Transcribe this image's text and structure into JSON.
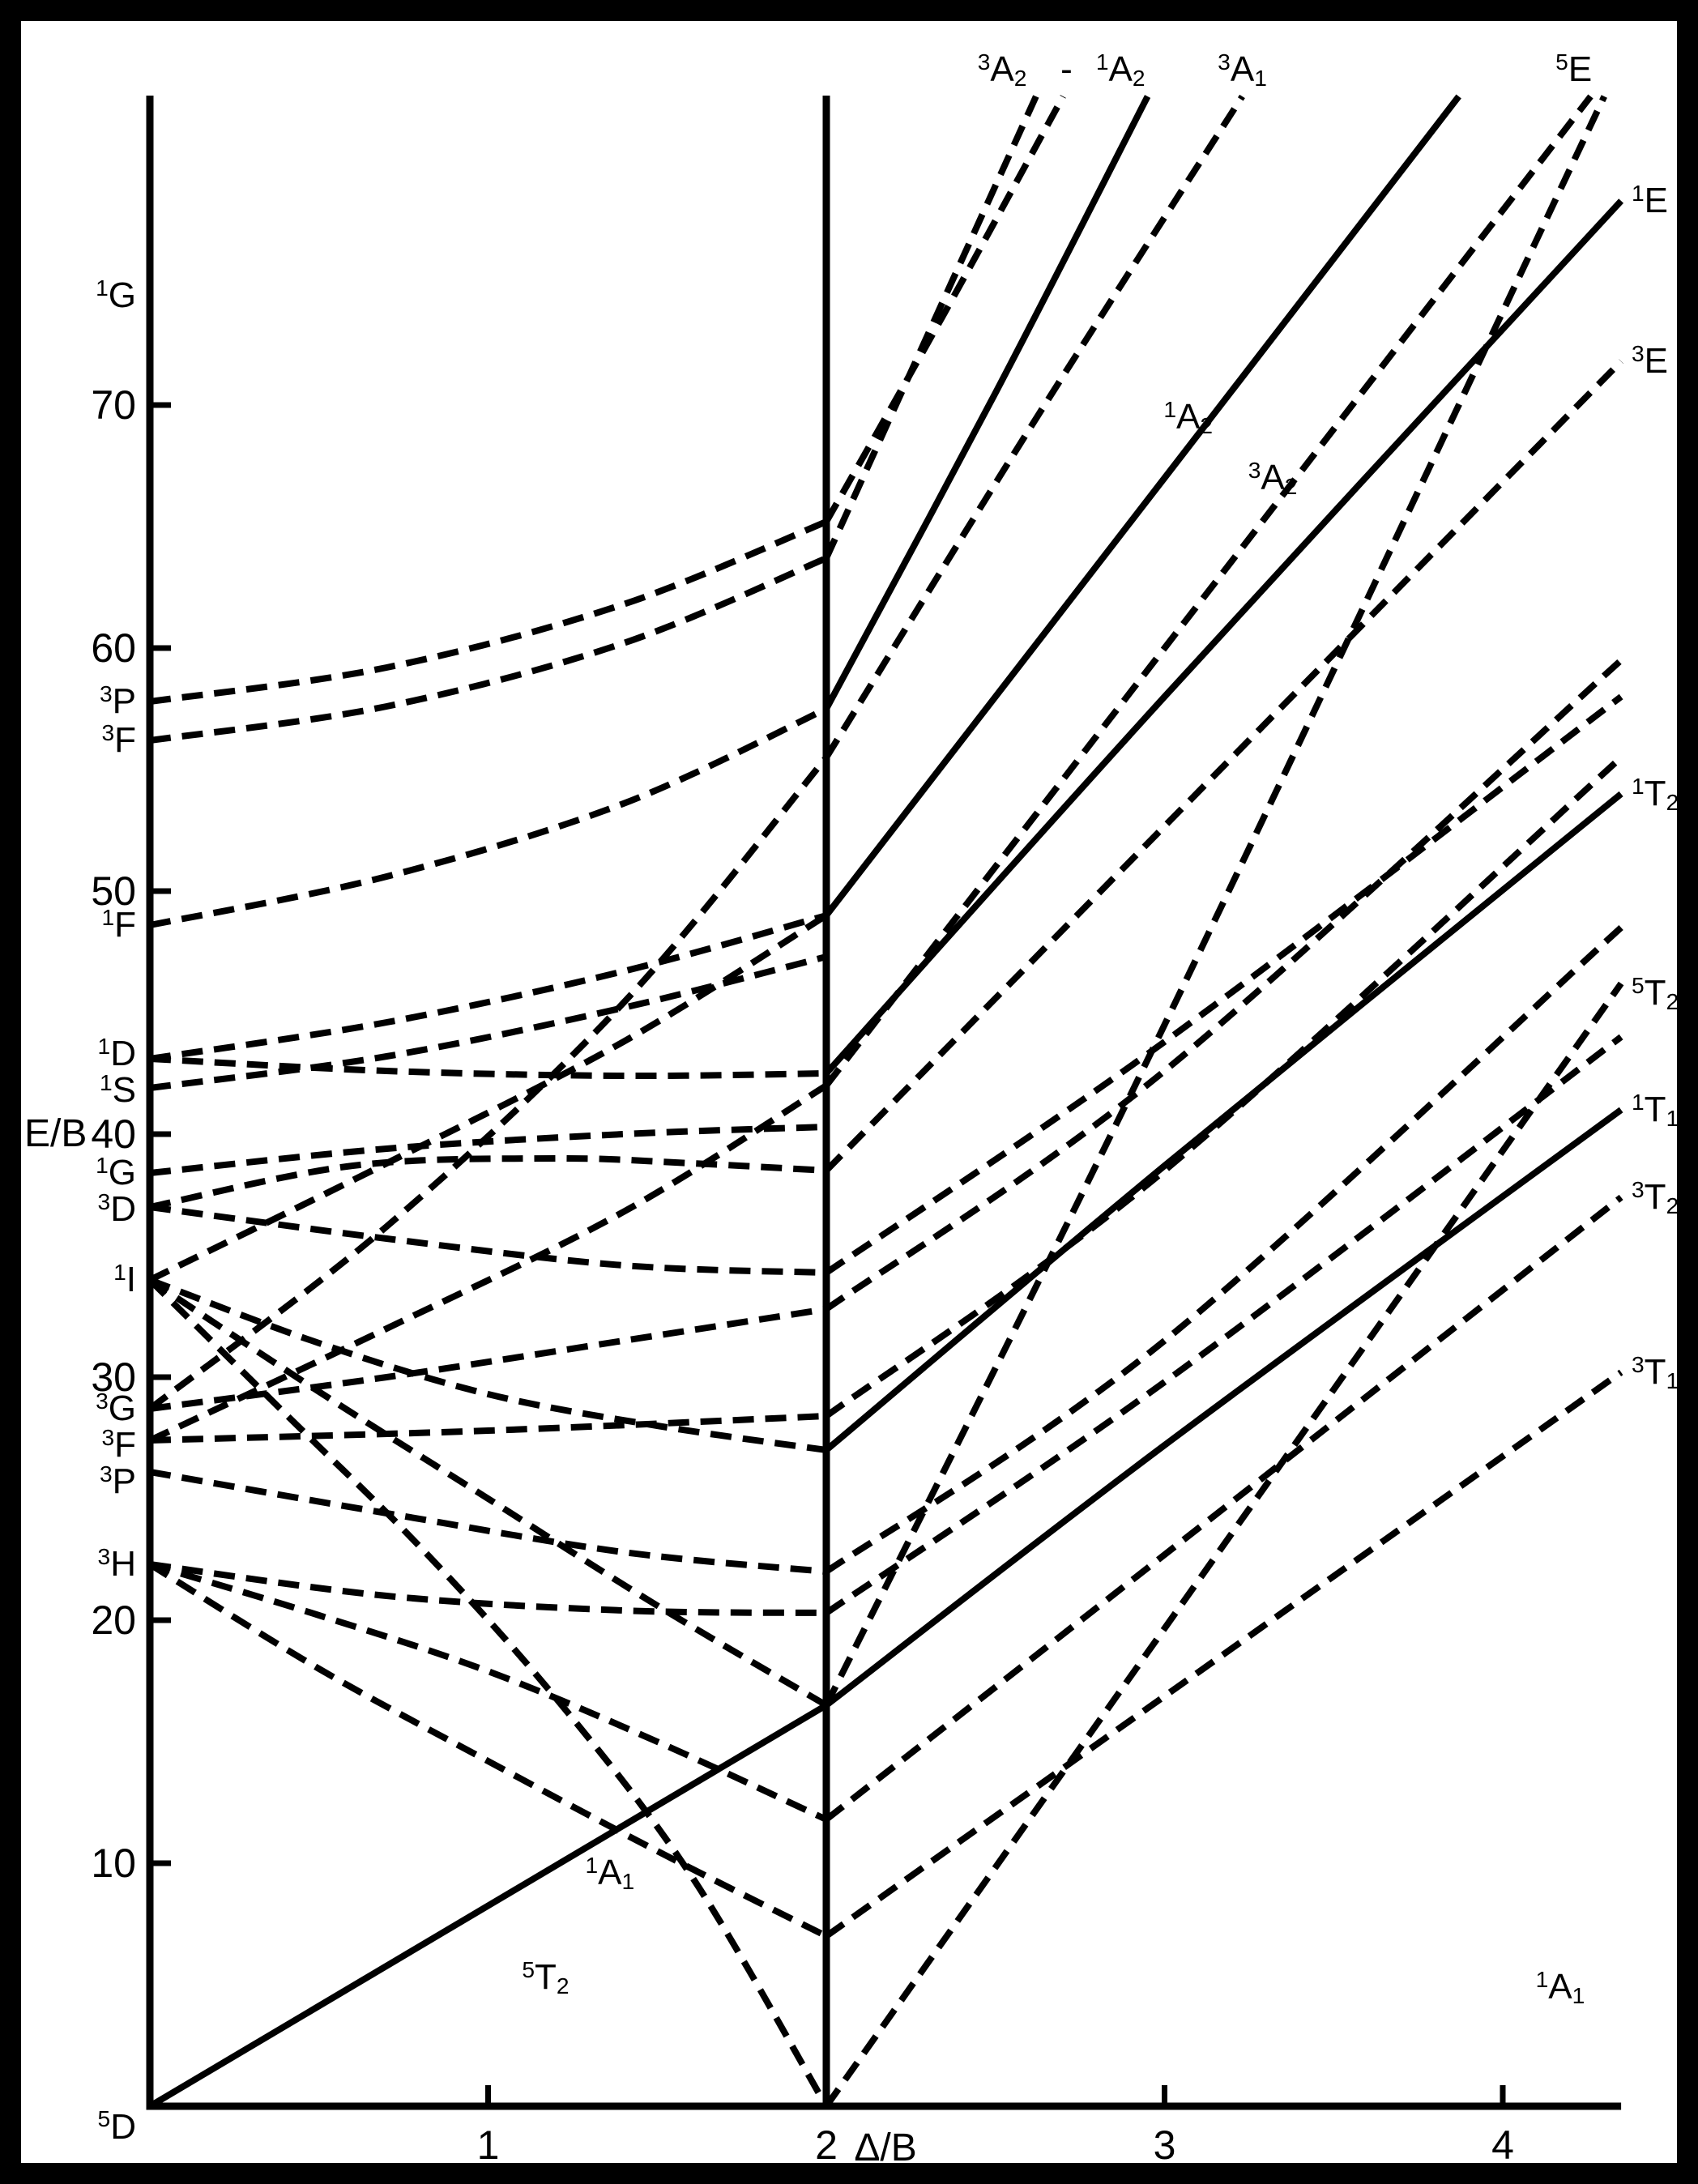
{
  "figure": {
    "background": "#ffffff",
    "frame_color": "#000000"
  },
  "chart_data": {
    "type": "line",
    "description": "Tanabe-Sugano style energy level diagram, E/B versus Delta/B, with spin-crossover vertical line at Delta/B = 2. Solid curves are spin-allowed states, dashed curves are spin-forbidden states.",
    "xlabel": "Δ/B",
    "ylabel": "E/B",
    "xlim": [
      0,
      4.35
    ],
    "ylim": [
      0,
      82.7
    ],
    "x_ticks": [
      1,
      2,
      3,
      4
    ],
    "y_ticks": [
      10,
      20,
      30,
      40,
      50,
      60,
      70
    ],
    "grid": false,
    "legend": "none",
    "crossover_line_x": 2,
    "line_color": "#000000",
    "background": "#ffffff",
    "series": [
      {
        "name": "5E-left",
        "style": "solid",
        "points": [
          [
            0,
            0
          ],
          [
            2,
            16.5
          ]
        ]
      },
      {
        "name": "1T1-right",
        "style": "solid",
        "points": [
          [
            2,
            16.5
          ],
          [
            3,
            27.2
          ],
          [
            4.35,
            41
          ]
        ]
      },
      {
        "name": "1T2-right",
        "style": "solid",
        "points": [
          [
            2,
            27
          ],
          [
            3,
            38.7
          ],
          [
            4.35,
            54
          ]
        ]
      },
      {
        "name": "1E-right",
        "style": "solid",
        "points": [
          [
            2,
            42.5
          ],
          [
            3,
            58
          ],
          [
            4.35,
            78.4
          ]
        ]
      },
      {
        "name": "1A2a-right",
        "style": "solid",
        "points": [
          [
            2,
            57.5
          ],
          [
            2.5,
            70.5
          ],
          [
            2.95,
            82.7
          ]
        ]
      },
      {
        "name": "1A2b-right",
        "style": "solid",
        "points": [
          [
            2,
            49
          ],
          [
            3,
            67
          ],
          [
            3.87,
            82.7
          ]
        ]
      },
      {
        "name": "5T2-right",
        "style": "dashed",
        "points": [
          [
            2,
            0
          ],
          [
            4.35,
            46.2
          ]
        ]
      },
      {
        "name": "5E-right",
        "style": "dashed",
        "points": [
          [
            2,
            16.5
          ],
          [
            3,
            44.5
          ],
          [
            4.3,
            82.7
          ]
        ]
      },
      {
        "name": "3T1-right",
        "style": "dashed",
        "points": [
          [
            2,
            7
          ],
          [
            4.35,
            30.2
          ]
        ]
      },
      {
        "name": "3T2-right",
        "style": "dashed",
        "points": [
          [
            2,
            11.8
          ],
          [
            4.35,
            37.4
          ]
        ]
      },
      {
        "name": "3E-right",
        "style": "dashed",
        "points": [
          [
            2,
            38.5
          ],
          [
            4.35,
            71.8
          ]
        ]
      },
      {
        "name": "3A2a-right",
        "style": "dashed",
        "points": [
          [
            2,
            63.7
          ],
          [
            2.62,
            82.7
          ]
        ]
      },
      {
        "name": "3A1-left",
        "style": "dashed",
        "points": [
          [
            0,
            28.7
          ],
          [
            0.7,
            36.2
          ],
          [
            1.4,
            45.4
          ],
          [
            2,
            55.5
          ]
        ]
      },
      {
        "name": "3A1-right",
        "style": "dashed",
        "points": [
          [
            2,
            55.5
          ],
          [
            2.6,
            69
          ],
          [
            3.23,
            82.7
          ]
        ]
      },
      {
        "name": "3A2b-left",
        "style": "dashed",
        "points": [
          [
            0,
            27.4
          ],
          [
            0.7,
            32
          ],
          [
            1.4,
            36.8
          ],
          [
            2,
            42
          ]
        ]
      },
      {
        "name": "3A2b-right",
        "style": "dashed",
        "points": [
          [
            2,
            42
          ],
          [
            3,
            60
          ],
          [
            4.26,
            82.7
          ]
        ]
      },
      {
        "name": "1A1-left",
        "style": "dashed",
        "points": [
          [
            0,
            34
          ],
          [
            0.4,
            28.5
          ],
          [
            0.8,
            23
          ],
          [
            1.2,
            16.8
          ],
          [
            1.6,
            9.5
          ],
          [
            2,
            0
          ]
        ]
      },
      {
        "name": "3T1a-left",
        "style": "dashed",
        "points": [
          [
            0,
            22.3
          ],
          [
            0.5,
            18
          ],
          [
            1,
            14.2
          ],
          [
            1.5,
            10.5
          ],
          [
            2,
            7
          ]
        ]
      },
      {
        "name": "3T2a-left",
        "style": "dashed",
        "points": [
          [
            0,
            22.3
          ],
          [
            0.5,
            20.2
          ],
          [
            1,
            17.9
          ],
          [
            1.5,
            15
          ],
          [
            2,
            11.8
          ]
        ]
      },
      {
        "name": "3Ea-left",
        "style": "dashed",
        "points": [
          [
            0,
            22.3
          ],
          [
            0.7,
            21
          ],
          [
            1.4,
            20.4
          ],
          [
            2,
            20.3
          ]
        ]
      },
      {
        "name": "3Ea-right",
        "style": "dashed",
        "points": [
          [
            2,
            20.3
          ],
          [
            3,
            29.8
          ],
          [
            4.35,
            44
          ]
        ]
      },
      {
        "name": "3T1b-left",
        "style": "dashed",
        "points": [
          [
            0,
            26.1
          ],
          [
            0.7,
            24.4
          ],
          [
            1.4,
            22.8
          ],
          [
            2,
            22
          ]
        ]
      },
      {
        "name": "3T1b-right",
        "style": "dashed",
        "points": [
          [
            2,
            22
          ],
          [
            3,
            31.5
          ],
          [
            4.35,
            48.5
          ]
        ]
      },
      {
        "name": "3T2b-left",
        "style": "dashed",
        "points": [
          [
            0,
            27.4
          ],
          [
            1,
            27.8
          ],
          [
            2,
            28.4
          ]
        ]
      },
      {
        "name": "3T2b-right",
        "style": "dashed",
        "points": [
          [
            2,
            28.4
          ],
          [
            3,
            38.5
          ],
          [
            4.35,
            55.5
          ]
        ]
      },
      {
        "name": "3T1c-left",
        "style": "dashed",
        "points": [
          [
            0,
            28.7
          ],
          [
            0.7,
            30
          ],
          [
            1.4,
            31.5
          ],
          [
            2,
            32.8
          ]
        ]
      },
      {
        "name": "3T1c-right",
        "style": "dashed",
        "points": [
          [
            2,
            32.8
          ],
          [
            3,
            42.6
          ],
          [
            4.35,
            59.5
          ]
        ]
      },
      {
        "name": "1T1-left",
        "style": "dashed",
        "points": [
          [
            0,
            34
          ],
          [
            0.5,
            29.4
          ],
          [
            1,
            25
          ],
          [
            1.5,
            20.6
          ],
          [
            2,
            16.5
          ]
        ]
      },
      {
        "name": "1T2-left",
        "style": "dashed",
        "points": [
          [
            0,
            34
          ],
          [
            0.5,
            31.4
          ],
          [
            1,
            29.3
          ],
          [
            1.5,
            28
          ],
          [
            2,
            27
          ]
        ]
      },
      {
        "name": "1A2-left",
        "style": "dashed",
        "points": [
          [
            0,
            34
          ],
          [
            0.7,
            38.8
          ],
          [
            1.4,
            43.8
          ],
          [
            2,
            49
          ]
        ]
      },
      {
        "name": "1E-left",
        "style": "dashed",
        "points": [
          [
            0,
            43.1
          ],
          [
            0.7,
            42.6
          ],
          [
            1.4,
            42.4
          ],
          [
            2,
            42.5
          ]
        ]
      },
      {
        "name": "3Eb-left",
        "style": "dashed",
        "points": [
          [
            0,
            37
          ],
          [
            0.6,
            38.7
          ],
          [
            1.2,
            39
          ],
          [
            1.6,
            38.8
          ],
          [
            2,
            38.5
          ]
        ]
      },
      {
        "name": "3T2c-left",
        "style": "dashed",
        "points": [
          [
            0,
            37
          ],
          [
            0.7,
            35.7
          ],
          [
            1.4,
            34.6
          ],
          [
            2,
            34.3
          ]
        ]
      },
      {
        "name": "3T2c-right",
        "style": "dashed",
        "points": [
          [
            2,
            34.3
          ],
          [
            3,
            43.8
          ],
          [
            4.35,
            58
          ]
        ]
      },
      {
        "name": "1G-left",
        "style": "dashed",
        "points": [
          [
            0,
            38.4
          ],
          [
            0.7,
            39.4
          ],
          [
            1.4,
            40
          ],
          [
            2,
            40.3
          ]
        ]
      },
      {
        "name": "1S-left",
        "style": "dashed",
        "points": [
          [
            0,
            41.9
          ],
          [
            0.7,
            43.2
          ],
          [
            1.4,
            45.2
          ],
          [
            2,
            47.3
          ]
        ]
      },
      {
        "name": "1T2b-left",
        "style": "dashed",
        "points": [
          [
            0,
            43.1
          ],
          [
            0.7,
            44.6
          ],
          [
            1.4,
            46.7
          ],
          [
            2,
            49
          ]
        ]
      },
      {
        "name": "1A2c-left",
        "style": "dashed",
        "points": [
          [
            0,
            48.6
          ],
          [
            0.7,
            50.6
          ],
          [
            1.4,
            53.6
          ],
          [
            2,
            57.5
          ]
        ]
      },
      {
        "name": "3Fb-left",
        "style": "dashed",
        "points": [
          [
            0,
            56.2
          ],
          [
            0.7,
            57.6
          ],
          [
            1.4,
            60.2
          ],
          [
            2,
            63.7
          ]
        ]
      },
      {
        "name": "3Pb-left",
        "style": "dashed",
        "points": [
          [
            0,
            57.8
          ],
          [
            0.7,
            59.2
          ],
          [
            1.4,
            61.8
          ],
          [
            2,
            65.2
          ]
        ]
      },
      {
        "name": "3Pb-right",
        "style": "dashed",
        "points": [
          [
            2,
            65.2
          ],
          [
            2.35,
            73.8
          ],
          [
            2.7,
            82.7
          ]
        ]
      }
    ],
    "labels": {
      "left_terms": [
        {
          "sup": "1",
          "base": "G",
          "E": 74.5
        },
        {
          "sup": "3",
          "base": "P",
          "E": 57.8
        },
        {
          "sup": "3",
          "base": "F",
          "E": 56.2
        },
        {
          "sup": "1",
          "base": "F",
          "E": 48.6
        },
        {
          "sup": "1",
          "base": "D",
          "E": 43.3
        },
        {
          "sup": "1",
          "base": "S",
          "E": 41.8
        },
        {
          "sup": "1",
          "base": "G",
          "E": 38.4
        },
        {
          "sup": "3",
          "base": "D",
          "E": 36.9
        },
        {
          "sup": "1",
          "base": "I",
          "E": 34.0
        },
        {
          "sup": "3",
          "base": "G",
          "E": 28.7
        },
        {
          "sup": "3",
          "base": "F",
          "E": 27.2
        },
        {
          "sup": "3",
          "base": "P",
          "E": 25.7
        },
        {
          "sup": "3",
          "base": "H",
          "E": 22.3
        },
        {
          "sup": "5",
          "base": "D",
          "E": -0.85
        }
      ],
      "right_terms": [
        {
          "sup": "1",
          "base": "E",
          "E": 78.4
        },
        {
          "sup": "3",
          "base": "E",
          "E": 71.8
        },
        {
          "sup": "1",
          "base": "T",
          "sub": "2",
          "E": 54.0
        },
        {
          "sup": "5",
          "base": "T",
          "sub": "2",
          "E": 45.8
        },
        {
          "sup": "1",
          "base": "T",
          "sub": "1",
          "E": 41.0
        },
        {
          "sup": "3",
          "base": "T",
          "sub": "2",
          "E": 37.4
        },
        {
          "sup": "3",
          "base": "T",
          "sub": "1",
          "E": 30.2
        }
      ],
      "top_terms": [
        {
          "sup": "3",
          "base": "A",
          "sub": "2",
          "X": 2.52
        },
        {
          "plain": "-",
          "X": 2.71
        },
        {
          "sup": "1",
          "base": "A",
          "sub": "2",
          "X": 2.87
        },
        {
          "sup": "3",
          "base": "A",
          "sub": "1",
          "X": 3.23
        },
        {
          "sup": "5",
          "base": "E",
          "X": 4.21
        }
      ],
      "inner_terms": [
        {
          "sup": "1",
          "base": "A",
          "sub": "2",
          "X": 3.07,
          "E": 69.5
        },
        {
          "sup": "3",
          "base": "A",
          "sub": "2",
          "X": 3.32,
          "E": 67.0
        },
        {
          "sup": "1",
          "base": "A",
          "sub": "1",
          "X": 1.36,
          "E": 9.6
        },
        {
          "sup": "5",
          "base": "T",
          "sub": "2",
          "X": 1.17,
          "E": 5.3
        },
        {
          "sup": "1",
          "base": "A",
          "sub": "1",
          "X": 4.17,
          "E": 4.9
        }
      ]
    }
  }
}
